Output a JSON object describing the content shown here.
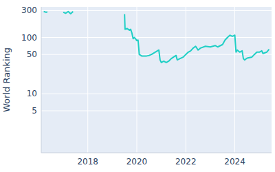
{
  "chart_data": {
    "type": "line",
    "y_label": "World Ranking",
    "log": "y",
    "grid": true,
    "color": "#1fcfc5",
    "x": [
      2016.2,
      2016.3,
      2016.35,
      null,
      2017.0,
      2017.1,
      2017.2,
      2017.3,
      2017.4,
      null,
      2019.5,
      2019.52,
      2019.6,
      2019.7,
      2019.75,
      2019.8,
      2019.85,
      2019.9,
      2019.95,
      2020.0,
      2020.05,
      2020.08,
      2020.1,
      2020.2,
      2020.4,
      2020.5,
      2020.6,
      2020.75,
      2020.9,
      2020.95,
      2021.0,
      2021.1,
      2021.2,
      2021.3,
      2021.4,
      2021.5,
      2021.6,
      2021.65,
      2021.75,
      2021.9,
      2022.0,
      2022.1,
      2022.2,
      2022.3,
      2022.4,
      2022.5,
      2022.6,
      2022.8,
      2023.0,
      2023.2,
      2023.3,
      2023.5,
      2023.6,
      2023.7,
      2023.8,
      2023.9,
      2024.0,
      2024.05,
      2024.1,
      2024.2,
      2024.3,
      2024.35,
      2024.4,
      2024.5,
      2024.7,
      2024.8,
      2024.9,
      2025.0,
      2025.1,
      2025.15,
      2025.3,
      2025.4
    ],
    "values": [
      290,
      280,
      285,
      null,
      280,
      270,
      290,
      265,
      290,
      null,
      260,
      140,
      145,
      135,
      140,
      120,
      95,
      100,
      95,
      88,
      90,
      65,
      50,
      47,
      47,
      48,
      50,
      55,
      60,
      40,
      36,
      38,
      36,
      38,
      42,
      45,
      48,
      40,
      42,
      45,
      50,
      55,
      58,
      65,
      70,
      60,
      65,
      70,
      68,
      72,
      68,
      75,
      90,
      100,
      110,
      105,
      110,
      55,
      60,
      55,
      58,
      42,
      40,
      43,
      45,
      50,
      55,
      55,
      58,
      52,
      55,
      62
    ],
    "xlim": [
      2016.1,
      2025.5
    ],
    "xticks": [
      2018,
      2020,
      2022,
      2024
    ],
    "ylim": [
      0.9,
      350
    ],
    "yticks": [
      5,
      10,
      50,
      100,
      300
    ]
  }
}
